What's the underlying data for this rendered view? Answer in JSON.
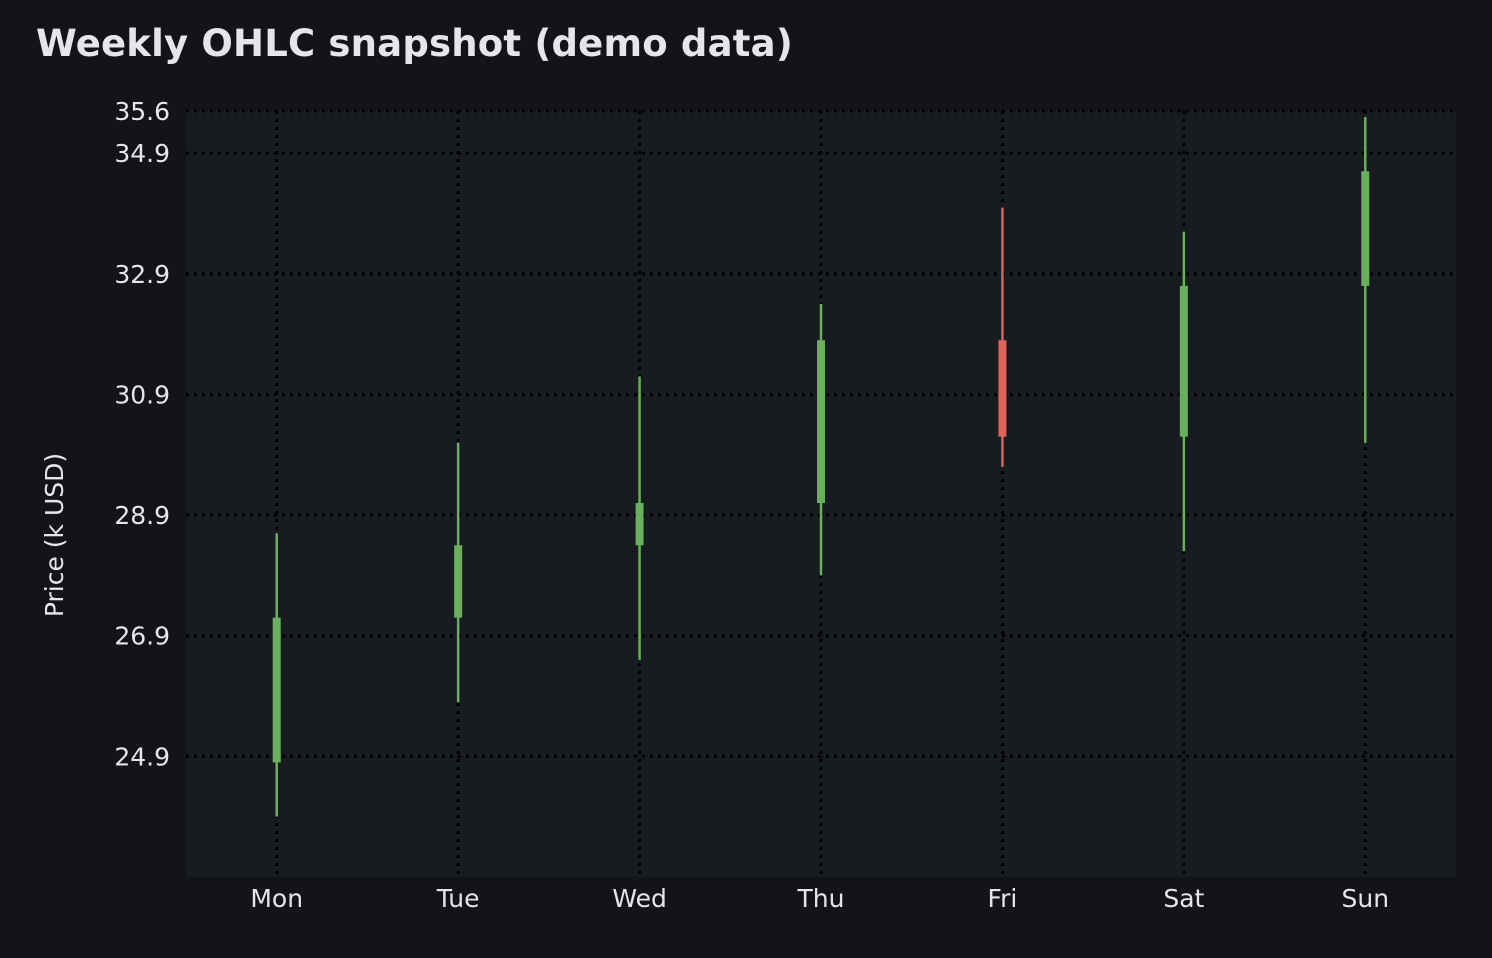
{
  "chart_data": {
    "type": "ohlc-candlestick",
    "title": "Weekly OHLC snapshot (demo data)",
    "xlabel": "",
    "ylabel": "Price (k USD)",
    "categories": [
      "Mon",
      "Tue",
      "Wed",
      "Thu",
      "Fri",
      "Sat",
      "Sun"
    ],
    "open": [
      24.8,
      27.2,
      28.4,
      29.1,
      31.8,
      30.2,
      32.7
    ],
    "high": [
      28.6,
      30.1,
      31.2,
      32.4,
      34.0,
      33.6,
      35.5
    ],
    "low": [
      23.9,
      25.8,
      26.5,
      27.9,
      29.7,
      28.3,
      30.1
    ],
    "close": [
      27.2,
      28.4,
      29.1,
      31.8,
      30.2,
      32.7,
      34.6
    ],
    "yticks": [
      24.9,
      26.9,
      28.9,
      30.9,
      32.9,
      34.9,
      35.6
    ],
    "ylim": [
      22.9,
      35.6
    ],
    "grid": true,
    "colors": {
      "up": "#6ab05c",
      "down": "#e06259",
      "background": "#131417",
      "plot_background": "#181b20",
      "grid": "#000000",
      "text": "#e6e6ea"
    }
  }
}
